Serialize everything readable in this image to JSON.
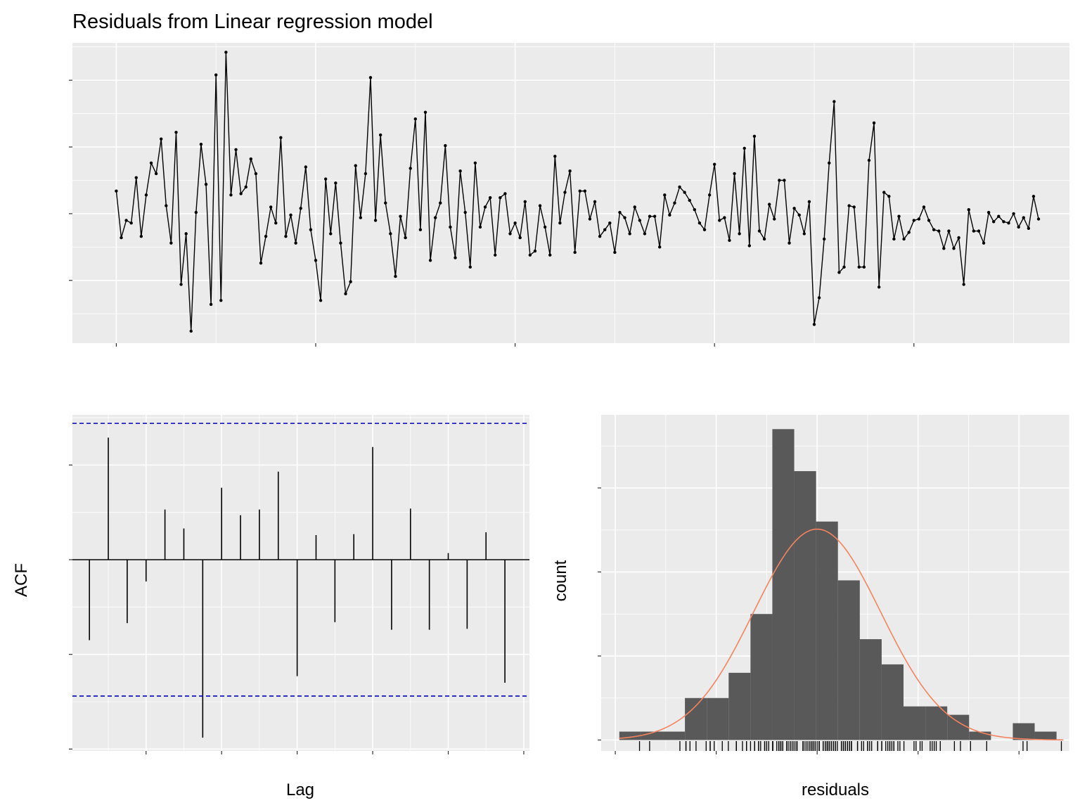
{
  "chart_data": [
    {
      "type": "line",
      "title": "Residuals from Linear regression model",
      "xlabel": "",
      "ylabel": "",
      "x_ticks": [
        "1970",
        "1980",
        "1990",
        "2000",
        "2010"
      ],
      "y_ticks": [
        "-0.5",
        "0.0",
        "0.5",
        "1.0"
      ],
      "xlim": [
        1967.8,
        2017.8
      ],
      "ylim": [
        -0.97,
        1.28
      ],
      "x_start": 1970.0,
      "x_step": 0.25,
      "values": [
        0.17,
        -0.18,
        -0.05,
        -0.07,
        0.27,
        -0.17,
        0.14,
        0.38,
        0.3,
        0.56,
        0.06,
        -0.22,
        0.61,
        -0.53,
        -0.15,
        -0.88,
        0.01,
        0.52,
        0.22,
        -0.68,
        1.04,
        -0.65,
        1.21,
        0.14,
        0.48,
        0.15,
        0.2,
        0.41,
        0.3,
        -0.37,
        -0.17,
        0.05,
        -0.07,
        0.57,
        -0.17,
        -0.01,
        -0.22,
        0.04,
        0.35,
        -0.12,
        -0.35,
        -0.65,
        0.26,
        -0.15,
        0.23,
        -0.22,
        -0.6,
        -0.51,
        0.36,
        -0.03,
        0.3,
        1.02,
        -0.05,
        0.59,
        0.08,
        -0.15,
        -0.47,
        -0.02,
        -0.18,
        0.34,
        0.71,
        -0.12,
        0.76,
        -0.35,
        -0.03,
        0.08,
        0.51,
        -0.1,
        -0.33,
        0.32,
        0.01,
        -0.4,
        0.38,
        -0.1,
        0.05,
        0.12,
        -0.31,
        0.12,
        0.15,
        -0.15,
        -0.07,
        -0.18,
        0.09,
        -0.31,
        -0.28,
        0.06,
        -0.1,
        -0.31,
        0.43,
        -0.07,
        0.16,
        0.32,
        -0.29,
        0.17,
        0.17,
        -0.04,
        0.09,
        -0.17,
        -0.12,
        -0.07,
        -0.29,
        0.01,
        -0.03,
        -0.15,
        0.05,
        -0.05,
        -0.15,
        -0.02,
        -0.02,
        -0.25,
        0.14,
        -0.01,
        0.08,
        0.2,
        0.16,
        0.1,
        0.03,
        -0.07,
        -0.12,
        0.14,
        0.37,
        -0.05,
        -0.03,
        -0.2,
        0.3,
        -0.15,
        0.49,
        -0.24,
        0.58,
        -0.13,
        -0.19,
        0.07,
        -0.04,
        0.25,
        0.25,
        -0.22,
        0.04,
        -0.01,
        -0.15,
        0.09,
        -0.83,
        -0.63,
        -0.19,
        0.38,
        0.84,
        -0.44,
        -0.4,
        0.06,
        0.05,
        -0.4,
        -0.4,
        0.4,
        0.68,
        -0.55,
        0.16,
        0.13,
        -0.19,
        -0.02,
        -0.19,
        -0.14,
        -0.05,
        -0.04,
        0.05,
        -0.05,
        -0.12,
        -0.13,
        -0.26,
        -0.13,
        -0.26,
        -0.18,
        -0.53,
        0.03,
        -0.13,
        -0.13,
        -0.22,
        0.01,
        -0.06,
        -0.02,
        -0.06,
        -0.07,
        0.0,
        -0.1,
        -0.03,
        -0.11,
        0.13,
        -0.04
      ]
    },
    {
      "type": "bar",
      "subtype": "acf",
      "title": "",
      "xlabel": "Lag",
      "ylabel": "ACF",
      "x_ticks": [
        "4",
        "8",
        "12",
        "16",
        "20",
        "24"
      ],
      "y_ticks": [
        "-0.2",
        "-0.1",
        "0.0",
        "0.1"
      ],
      "xlim": [
        0.1,
        24.3
      ],
      "ylim": [
        -0.202,
        0.153
      ],
      "lags": [
        1,
        2,
        3,
        4,
        5,
        6,
        7,
        8,
        9,
        10,
        11,
        12,
        13,
        14,
        15,
        16,
        17,
        18,
        19,
        20,
        21,
        22,
        23
      ],
      "values": [
        -0.085,
        0.129,
        -0.067,
        -0.023,
        0.053,
        0.033,
        -0.188,
        0.076,
        0.047,
        0.053,
        0.093,
        -0.123,
        0.026,
        -0.066,
        0.027,
        0.119,
        -0.074,
        0.054,
        -0.074,
        0.007,
        -0.073,
        0.029,
        -0.13
      ],
      "confidence_limit": 0.144,
      "confidence_color": "#0000CC"
    },
    {
      "type": "bar",
      "subtype": "histogram",
      "title": "",
      "xlabel": "residuals",
      "ylabel": "count",
      "x_ticks": [
        "-1.0",
        "-0.5",
        "0.0",
        "0.5",
        "1.0"
      ],
      "y_ticks": [
        "0",
        "10",
        "20",
        "30"
      ],
      "xlim": [
        -1.07,
        1.25
      ],
      "ylim": [
        -1.3,
        38.7
      ],
      "bin_start": -0.98,
      "bin_width": 0.1083,
      "counts": [
        1,
        1,
        1,
        5,
        5,
        8,
        15,
        37,
        32,
        26,
        19,
        12,
        9,
        4,
        4,
        3,
        1,
        0,
        2,
        1
      ],
      "bar_color": "#595959",
      "normal_curve": {
        "mean": 0.0,
        "sd": 0.315,
        "n": 183,
        "color": "#F4835E"
      },
      "rug": [
        -0.88,
        -0.83,
        -0.68,
        -0.65,
        -0.65,
        -0.63,
        -0.6,
        -0.55,
        -0.53,
        -0.53,
        -0.51,
        -0.47,
        -0.44,
        -0.4,
        -0.4,
        -0.4,
        -0.4,
        -0.37,
        -0.35,
        -0.35,
        -0.33,
        -0.31,
        -0.31,
        -0.31,
        -0.29,
        -0.29,
        -0.28,
        -0.26,
        -0.26,
        -0.25,
        -0.24,
        -0.22,
        -0.22,
        -0.22,
        -0.22,
        -0.2,
        -0.19,
        -0.19,
        -0.19,
        -0.18,
        -0.18,
        -0.18,
        -0.17,
        -0.17,
        -0.17,
        -0.15,
        -0.15,
        -0.15,
        -0.15,
        -0.15,
        -0.15,
        -0.14,
        -0.13,
        -0.13,
        -0.13,
        -0.13,
        -0.12,
        -0.12,
        -0.12,
        -0.12,
        -0.11,
        -0.1,
        -0.1,
        -0.1,
        -0.1,
        -0.07,
        -0.07,
        -0.07,
        -0.07,
        -0.06,
        -0.05,
        -0.05,
        -0.05,
        -0.05,
        -0.04,
        -0.04,
        -0.03,
        -0.03,
        -0.03,
        -0.02,
        -0.02,
        -0.02,
        -0.02,
        -0.01,
        -0.01,
        -0.01,
        0.0,
        0.01,
        0.01,
        0.01,
        0.03,
        0.03,
        0.04,
        0.04,
        0.05,
        0.05,
        0.05,
        0.05,
        0.06,
        0.06,
        0.06,
        0.07,
        0.07,
        0.08,
        0.08,
        0.09,
        0.09,
        0.1,
        0.12,
        0.12,
        0.13,
        0.13,
        0.14,
        0.14,
        0.14,
        0.15,
        0.15,
        0.16,
        0.16,
        0.17,
        0.17,
        0.17,
        0.2,
        0.2,
        0.22,
        0.23,
        0.25,
        0.25,
        0.26,
        0.27,
        0.3,
        0.3,
        0.3,
        0.32,
        0.32,
        0.34,
        0.35,
        0.36,
        0.36,
        0.37,
        0.38,
        0.38,
        0.4,
        0.41,
        0.43,
        0.48,
        0.49,
        0.51,
        0.52,
        0.56,
        0.57,
        0.58,
        0.59,
        0.61,
        0.68,
        0.71,
        0.76,
        0.84,
        1.02,
        1.04,
        1.21
      ]
    }
  ]
}
